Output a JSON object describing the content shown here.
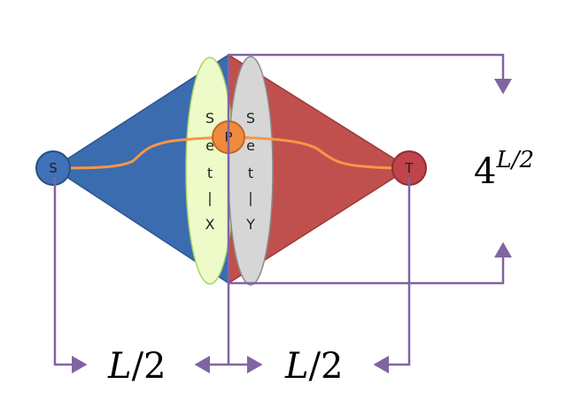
{
  "nodes": {
    "s": {
      "label": "S",
      "color": "#3f72b8"
    },
    "p": {
      "label": "P",
      "color": "#f08a3c"
    },
    "t": {
      "label": "T",
      "color": "#c0444a"
    }
  },
  "sets": {
    "x": {
      "letters": [
        "S",
        "e",
        "t",
        "|",
        "X"
      ],
      "color": "#eefbc8"
    },
    "y": {
      "letters": [
        "S",
        "e",
        "t",
        "|",
        "Y"
      ],
      "color": "#d6d6d6"
    }
  },
  "measures": {
    "left_half": {
      "base": "L",
      "rest": "/2"
    },
    "right_half": {
      "base": "L",
      "rest": "/2"
    },
    "height": {
      "base": "4",
      "exponent": "L/2"
    }
  },
  "colors": {
    "left_triangle": "#3b6cb0",
    "right_triangle": "#c0504d",
    "path": "#f79646",
    "arrows": "#8064a2"
  }
}
